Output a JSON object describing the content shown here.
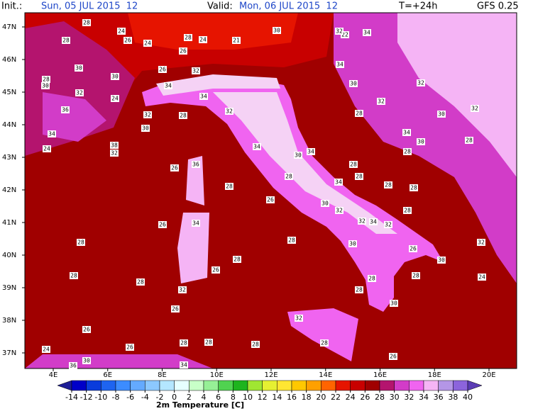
{
  "header": {
    "init_label": "Init.:",
    "init": "Sun, 05 JUL 2015  12",
    "valid_label": "Valid:",
    "valid": "Mon, 06 JUL 2015  12",
    "forecast": "T=+24h",
    "model": "GFS 0.25"
  },
  "map": {
    "lat_labels": [
      "47N",
      "46N",
      "45N",
      "44N",
      "43N",
      "42N",
      "41N",
      "40N",
      "39N",
      "38N",
      "37N"
    ],
    "lon_labels": [
      "4E",
      "6E",
      "8E",
      "10E",
      "12E",
      "14E",
      "16E",
      "18E",
      "20E"
    ],
    "temperature_labels": [
      "28",
      "24",
      "26",
      "24",
      "28",
      "24",
      "21",
      "30",
      "22",
      "32",
      "34",
      "28",
      "26",
      "26",
      "32",
      "30",
      "30",
      "28",
      "30",
      "32",
      "34",
      "34",
      "36",
      "24",
      "32",
      "28",
      "32",
      "30",
      "34",
      "28",
      "32",
      "30",
      "32",
      "32",
      "34",
      "30",
      "28",
      "28",
      "34",
      "38",
      "32",
      "24",
      "30",
      "34",
      "34",
      "30",
      "28",
      "26",
      "36",
      "28",
      "28",
      "34",
      "28",
      "28",
      "30",
      "32",
      "26",
      "28",
      "28",
      "26",
      "34",
      "28",
      "28",
      "32",
      "34",
      "32",
      "30",
      "26",
      "32",
      "30",
      "28",
      "26",
      "28",
      "28",
      "28",
      "32",
      "28",
      "28",
      "24",
      "26",
      "30",
      "32",
      "26",
      "28",
      "28",
      "26",
      "24",
      "28",
      "28",
      "30",
      "36",
      "34",
      "26"
    ]
  },
  "colorbar": {
    "ticks": [
      -14,
      -12,
      -10,
      -8,
      -6,
      -4,
      -2,
      0,
      2,
      4,
      6,
      8,
      10,
      12,
      14,
      16,
      18,
      20,
      22,
      24,
      26,
      28,
      30,
      32,
      34,
      36,
      38,
      40
    ],
    "colors": [
      "#1e1e96",
      "#0000c8",
      "#0a3cdc",
      "#1e64f0",
      "#3c8cff",
      "#64aaff",
      "#8cc8ff",
      "#b4e6ff",
      "#e6ffff",
      "#c8ffc8",
      "#96f096",
      "#50d250",
      "#1eb41e",
      "#a0e632",
      "#e6f032",
      "#ffe632",
      "#ffc800",
      "#ffa000",
      "#ff6400",
      "#e61400",
      "#c80000",
      "#a00000",
      "#b4146e",
      "#d23cc8",
      "#f064f0",
      "#f5b4f5",
      "#b496e6",
      "#8c64dc",
      "#5a3cb4"
    ],
    "title": "2m Temperature [C]"
  }
}
